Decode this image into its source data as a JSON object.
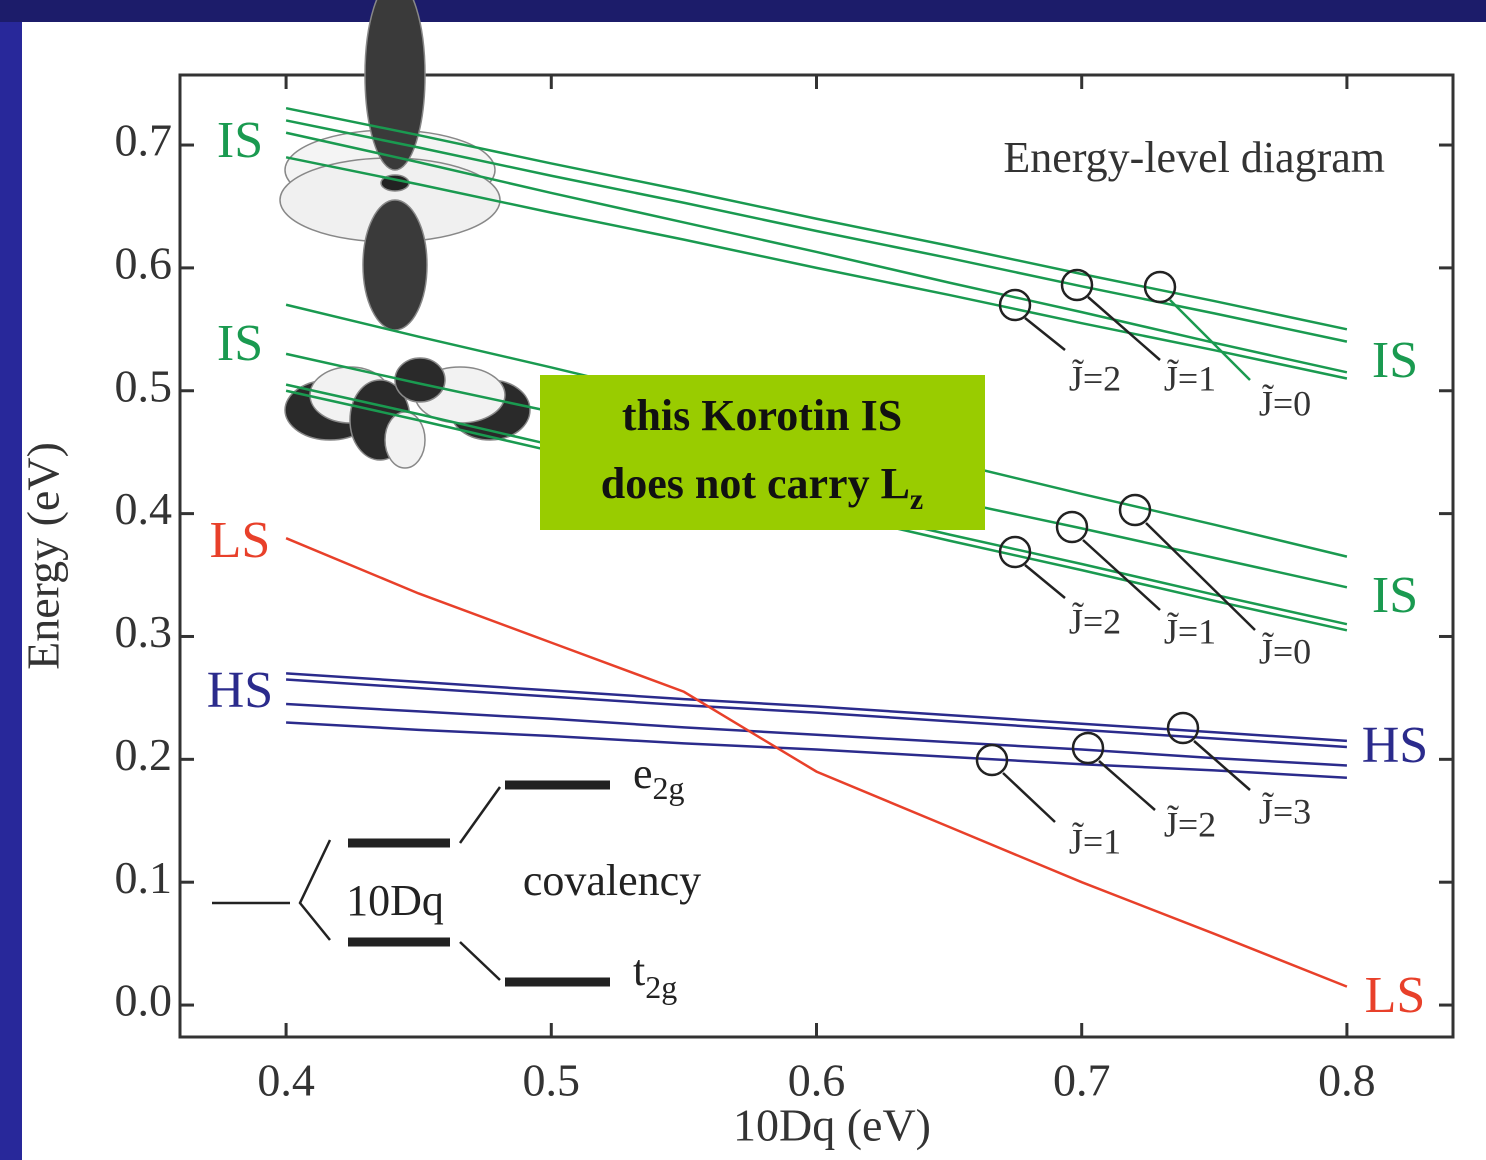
{
  "chart_data": {
    "type": "line",
    "title": "Energy-level diagram",
    "x_label": "10Dq (eV)",
    "y_label": "Energy (eV)",
    "x": [
      0.4,
      0.45,
      0.5,
      0.55,
      0.6,
      0.65,
      0.7,
      0.75,
      0.8
    ],
    "series": [
      {
        "color": "#1a9a50",
        "values": [
          0.73,
          0.708,
          0.685,
          0.663,
          0.64,
          0.618,
          0.595,
          0.573,
          0.55
        ]
      },
      {
        "color": "#1a9a50",
        "values": [
          0.72,
          0.698,
          0.675,
          0.653,
          0.63,
          0.608,
          0.585,
          0.563,
          0.54
        ]
      },
      {
        "color": "#1a9a50",
        "values": [
          0.71,
          0.686,
          0.661,
          0.637,
          0.613,
          0.588,
          0.564,
          0.539,
          0.515
        ]
      },
      {
        "color": "#1a9a50",
        "values": [
          0.69,
          0.668,
          0.645,
          0.623,
          0.6,
          0.578,
          0.555,
          0.533,
          0.51
        ]
      },
      {
        "color": "#1a9a50",
        "values": [
          0.57,
          0.544,
          0.519,
          0.493,
          0.468,
          0.442,
          0.416,
          0.391,
          0.365
        ]
      },
      {
        "color": "#1a9a50",
        "values": [
          0.53,
          0.506,
          0.483,
          0.459,
          0.435,
          0.411,
          0.388,
          0.364,
          0.34
        ]
      },
      {
        "color": "#1a9a50",
        "values": [
          0.505,
          0.481,
          0.456,
          0.432,
          0.408,
          0.383,
          0.359,
          0.334,
          0.31
        ]
      },
      {
        "color": "#1a9a50",
        "values": [
          0.5,
          0.476,
          0.451,
          0.427,
          0.403,
          0.378,
          0.354,
          0.329,
          0.305
        ]
      },
      {
        "color": "#2b2b8c",
        "values": [
          0.27,
          0.263,
          0.256,
          0.249,
          0.243,
          0.236,
          0.229,
          0.222,
          0.215
        ]
      },
      {
        "color": "#2b2b8c",
        "values": [
          0.265,
          0.258,
          0.251,
          0.244,
          0.238,
          0.231,
          0.224,
          0.217,
          0.21
        ]
      },
      {
        "color": "#2b2b8c",
        "values": [
          0.245,
          0.239,
          0.233,
          0.226,
          0.22,
          0.214,
          0.208,
          0.201,
          0.195
        ]
      },
      {
        "color": "#2b2b8c",
        "values": [
          0.23,
          0.224,
          0.219,
          0.213,
          0.208,
          0.202,
          0.196,
          0.191,
          0.185
        ]
      },
      {
        "color": "#e8402a",
        "values": [
          0.38,
          0.335,
          0.295,
          0.255,
          0.19,
          0.145,
          0.1,
          0.058,
          0.015
        ]
      }
    ],
    "xlim": [
      0.36,
      0.84
    ],
    "ylim": [
      -0.026,
      0.757
    ],
    "xticks": [
      0.4,
      0.5,
      0.6,
      0.7,
      0.8
    ],
    "yticks": [
      {
        "value": 0,
        "label": "0.0"
      },
      0.1,
      0.2,
      0.3,
      0.4,
      0.5,
      0.6,
      0.7
    ],
    "grid": false,
    "annotations": {
      "line_labels": [
        {
          "text": "IS",
          "color": "#1a9a50"
        },
        {
          "text": "IS",
          "color": "#1a9a50"
        },
        {
          "text": "IS",
          "color": "#1a9a50"
        },
        {
          "text": "IS",
          "color": "#1a9a50"
        },
        {
          "text": "HS",
          "color": "#2b2b8c"
        },
        {
          "text": "HS",
          "color": "#2b2b8c"
        },
        {
          "text": "LS",
          "color": "#e8402a"
        },
        {
          "text": "LS",
          "color": "#e8402a"
        }
      ],
      "j_labels": [
        "J̃=2",
        "J̃=1",
        "J̃=0",
        "J̃=2",
        "J̃=1",
        "J̃=0",
        "J̃=1",
        "J̃=2",
        "J̃=3"
      ],
      "box": {
        "line1": "this Korotin IS",
        "line2": "does not carry L",
        "subscript": "z"
      },
      "levels": {
        "e": "e",
        "e_sub": "2g",
        "t": "t",
        "t_sub": "2g",
        "dq": "10Dq",
        "covalency": "covalency"
      }
    }
  }
}
